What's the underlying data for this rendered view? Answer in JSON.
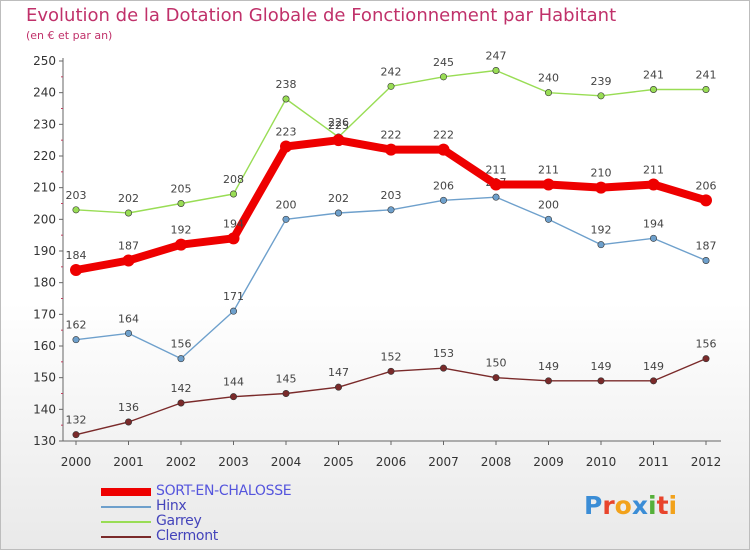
{
  "title": "Evolution de la Dotation Globale de Fonctionnement par Habitant",
  "subtitle": "(en € et par an)",
  "logo": {
    "text": "Proxiti",
    "colors": [
      "#3b8dd6",
      "#e8442c",
      "#f2a21b",
      "#3b8dd6",
      "#56b03a",
      "#e8442c",
      "#f2a21b"
    ]
  },
  "chart_data": {
    "type": "line",
    "x": [
      "2000",
      "2001",
      "2002",
      "2003",
      "2004",
      "2005",
      "2006",
      "2007",
      "2008",
      "2009",
      "2010",
      "2011",
      "2012"
    ],
    "ylim": [
      130,
      250
    ],
    "yticks": [
      130,
      140,
      150,
      160,
      170,
      180,
      190,
      200,
      210,
      220,
      230,
      240,
      250
    ],
    "grid": false,
    "legend_position": "bottom-left",
    "series": [
      {
        "name": "SORT-EN-CHALOSSE",
        "color": "#ee0000",
        "values": [
          184,
          187,
          192,
          194,
          223,
          225,
          222,
          222,
          211,
          211,
          210,
          211,
          206
        ]
      },
      {
        "name": "Hinx",
        "color": "#6ea0cc",
        "values": [
          162,
          164,
          156,
          171,
          200,
          202,
          203,
          206,
          207,
          200,
          192,
          194,
          187
        ]
      },
      {
        "name": "Garrey",
        "color": "#99dd55",
        "values": [
          203,
          202,
          205,
          208,
          238,
          226,
          242,
          245,
          247,
          240,
          239,
          241,
          241
        ]
      },
      {
        "name": "Clermont",
        "color": "#7a2a2a",
        "values": [
          132,
          136,
          142,
          144,
          145,
          147,
          152,
          153,
          150,
          149,
          149,
          149,
          156
        ]
      }
    ]
  }
}
